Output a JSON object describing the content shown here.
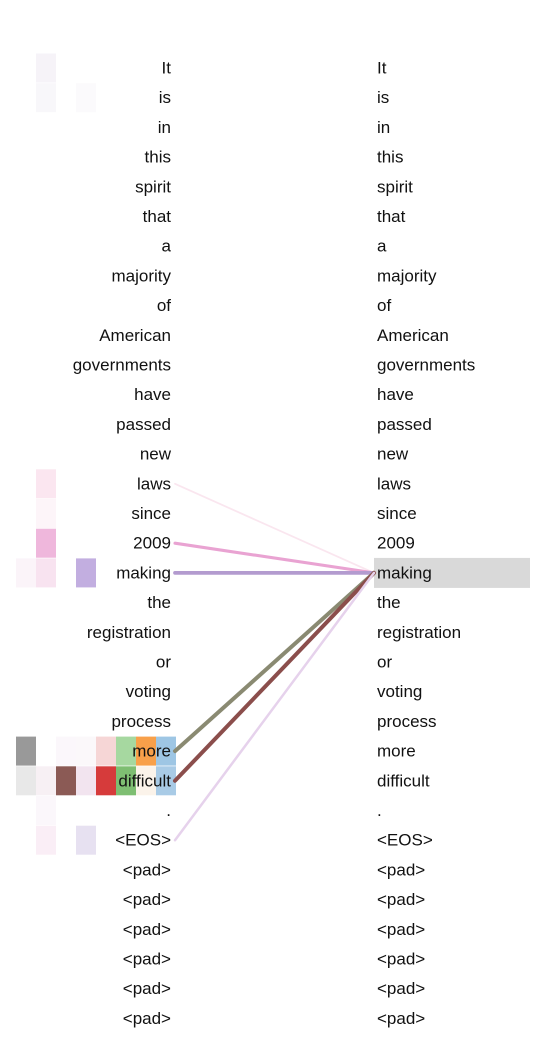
{
  "tokens": [
    "It",
    "is",
    "in",
    "this",
    "spirit",
    "that",
    "a",
    "majority",
    "of",
    "American",
    "governments",
    "have",
    "passed",
    "new",
    "laws",
    "since",
    "2009",
    "making",
    "the",
    "registration",
    "or",
    "voting",
    "process",
    "more",
    "difficult",
    ".",
    "<EOS>",
    "<pad>",
    "<pad>",
    "<pad>",
    "<pad>",
    "<pad>",
    "<pad>"
  ],
  "selected_index": 17,
  "selected_highlight_color": "#d9d9d9",
  "attention_links": [
    {
      "source_index": 14,
      "color": "#fae6ef",
      "weight": 0.25
    },
    {
      "source_index": 16,
      "color": "#e9a3d2",
      "weight": 0.7
    },
    {
      "source_index": 17,
      "color": "#b39bcf",
      "weight": 0.9
    },
    {
      "source_index": 23,
      "color": "#8a8a72",
      "weight": 1.0
    },
    {
      "source_index": 24,
      "color": "#8b4e4c",
      "weight": 1.0
    },
    {
      "source_index": 26,
      "color": "#e6d2ec",
      "weight": 0.5
    }
  ],
  "head_cells": [
    {
      "row": 0,
      "col": 1,
      "color": "#f6f3f8"
    },
    {
      "row": 1,
      "col": 1,
      "color": "#f8f7fa"
    },
    {
      "row": 1,
      "col": 3,
      "color": "#fbfafc"
    },
    {
      "row": 14,
      "col": 1,
      "color": "#fbe6f0"
    },
    {
      "row": 15,
      "col": 1,
      "color": "#fdf5f9"
    },
    {
      "row": 16,
      "col": 1,
      "color": "#efb7dc"
    },
    {
      "row": 17,
      "col": 0,
      "color": "#fbf4f9"
    },
    {
      "row": 17,
      "col": 1,
      "color": "#f8e3f0"
    },
    {
      "row": 17,
      "col": 3,
      "color": "#c2aee0"
    },
    {
      "row": 23,
      "col": 0,
      "color": "#999999"
    },
    {
      "row": 23,
      "col": 2,
      "color": "#fbf7fb"
    },
    {
      "row": 23,
      "col": 3,
      "color": "#fbf8fa"
    },
    {
      "row": 23,
      "col": 4,
      "color": "#f6d6d6"
    },
    {
      "row": 23,
      "col": 5,
      "color": "#a6d8a0"
    },
    {
      "row": 23,
      "col": 6,
      "color": "#f8a04a"
    },
    {
      "row": 23,
      "col": 7,
      "color": "#9ec6e4"
    },
    {
      "row": 24,
      "col": 0,
      "color": "#e8e8e8"
    },
    {
      "row": 24,
      "col": 1,
      "color": "#f7f0f4"
    },
    {
      "row": 24,
      "col": 2,
      "color": "#8b5a55"
    },
    {
      "row": 24,
      "col": 3,
      "color": "#f2e4ef"
    },
    {
      "row": 24,
      "col": 4,
      "color": "#d63b3b"
    },
    {
      "row": 24,
      "col": 5,
      "color": "#7ebe72"
    },
    {
      "row": 24,
      "col": 6,
      "color": "#fbf3ea"
    },
    {
      "row": 24,
      "col": 7,
      "color": "#a9cbe6"
    },
    {
      "row": 25,
      "col": 1,
      "color": "#fbf7fb"
    },
    {
      "row": 26,
      "col": 1,
      "color": "#faeef6"
    },
    {
      "row": 26,
      "col": 3,
      "color": "#e7e1f1"
    }
  ]
}
